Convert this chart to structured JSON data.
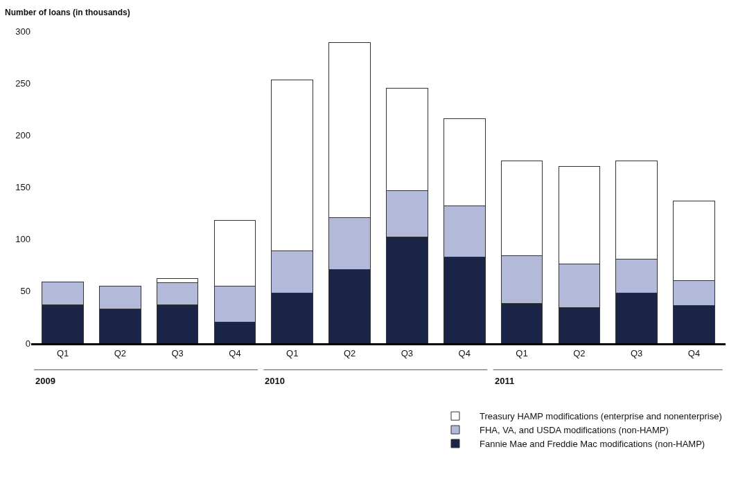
{
  "chart_data": {
    "type": "bar",
    "stacked": true,
    "ylabel": "Number of loans (in thousands)",
    "categories": [
      "Q1",
      "Q2",
      "Q3",
      "Q4",
      "Q1",
      "Q2",
      "Q3",
      "Q4",
      "Q1",
      "Q2",
      "Q3",
      "Q4"
    ],
    "series": [
      {
        "name": "Fannie Mae and Freddie Mac modifications (non-HAMP)",
        "color": "#1a2548",
        "values": [
          37,
          33,
          37,
          20,
          48,
          71,
          102,
          83,
          38,
          34,
          48,
          36
        ]
      },
      {
        "name": "FHA, VA, and USDA modifications (non-HAMP)",
        "color": "#b3b9d9",
        "values": [
          22,
          22,
          21,
          35,
          41,
          50,
          45,
          49,
          46,
          42,
          33,
          24
        ]
      },
      {
        "name": "Treasury HAMP modifications (enterprise and nonenterprise)",
        "color": "#ffffff",
        "values": [
          null,
          null,
          4,
          63,
          164,
          168,
          98,
          84,
          91,
          94,
          94,
          77
        ]
      }
    ],
    "annotations": [
      "2009",
      "2010",
      "2011"
    ],
    "ylim": [
      0,
      300
    ],
    "yticks": [
      0,
      50,
      100,
      150,
      200,
      250,
      300
    ],
    "legend": "bottom right"
  }
}
